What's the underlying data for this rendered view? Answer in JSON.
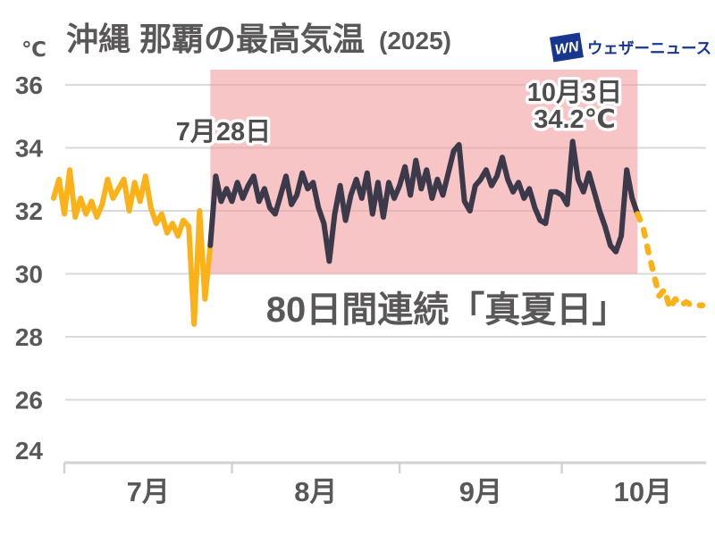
{
  "title": {
    "main": "沖縄 那覇の最高気温",
    "year": "(2025)"
  },
  "logo": {
    "mark": "WN",
    "name": "ウェザーニュース"
  },
  "axes": {
    "y_unit": "℃",
    "y_ticks": [
      36,
      34,
      32,
      30,
      28,
      26,
      24
    ],
    "x_ticks": [
      "7月",
      "8月",
      "9月",
      "10月"
    ]
  },
  "annotations": {
    "streak_start": "7月28日",
    "peak_date": "10月3日",
    "peak_temp": "34.2℃",
    "streak_text": "80日間連続「真夏日」"
  },
  "colors": {
    "text_gray": "#595757",
    "annotation_gray": "#4f4d4d",
    "line_yellow": "#FBB118",
    "line_dark": "#3B394A",
    "band_pink": "#F39B9C",
    "band_opacity": 0.58,
    "grid": "#D9D9D9",
    "axis": "#D2D2D2",
    "logo_blue": "#17368E"
  },
  "chart_data": {
    "type": "line",
    "title": "沖縄 那覇の最高気温 (2025)",
    "ylabel": "℃",
    "ylim": [
      24,
      36
    ],
    "grid": true,
    "legend": "none",
    "x_unit": "day index, 0 = 7月1日",
    "x_month_boundaries": {
      "labels": [
        "7月",
        "8月",
        "9月",
        "10月"
      ],
      "tick_days": [
        0,
        31,
        62,
        92
      ],
      "label_mid_days": [
        15.5,
        46.5,
        77,
        107
      ]
    },
    "highlight_band": {
      "start_day": 27,
      "end_day": 106,
      "start_label": "7月28日",
      "peak_label": {
        "date": "10月3日",
        "value": 34.2,
        "day": 94
      },
      "caption": "80日間連続「真夏日」",
      "temp_top": 36.5,
      "temp_bottom": 30
    },
    "series": [
      {
        "key": "before_streak",
        "style": "solid",
        "color": "#FBB118",
        "points": [
          [
            -2,
            32.4
          ],
          [
            -1,
            33.0
          ],
          [
            0,
            31.9
          ],
          [
            1,
            33.3
          ],
          [
            2,
            31.8
          ],
          [
            3,
            32.4
          ],
          [
            4,
            31.9
          ],
          [
            5,
            32.3
          ],
          [
            6,
            31.8
          ],
          [
            7,
            32.2
          ],
          [
            8,
            33.0
          ],
          [
            9,
            32.4
          ],
          [
            10,
            32.7
          ],
          [
            11,
            33.0
          ],
          [
            12,
            32.0
          ],
          [
            13,
            32.9
          ],
          [
            14,
            32.3
          ],
          [
            15,
            33.1
          ],
          [
            16,
            32.1
          ],
          [
            17,
            31.6
          ],
          [
            18,
            31.9
          ],
          [
            19,
            31.3
          ],
          [
            20,
            31.6
          ],
          [
            21,
            31.2
          ],
          [
            22,
            31.7
          ],
          [
            23,
            31.5
          ],
          [
            24,
            28.4
          ],
          [
            25,
            32.0
          ],
          [
            26,
            29.2
          ],
          [
            27,
            30.9
          ]
        ]
      },
      {
        "key": "streak",
        "style": "solid",
        "color": "#3B394A",
        "points": [
          [
            27,
            30.9
          ],
          [
            28,
            33.1
          ],
          [
            29,
            32.3
          ],
          [
            30,
            32.7
          ],
          [
            31,
            32.3
          ],
          [
            32,
            32.9
          ],
          [
            33,
            32.4
          ],
          [
            34,
            32.8
          ],
          [
            35,
            33.1
          ],
          [
            36,
            32.3
          ],
          [
            37,
            32.7
          ],
          [
            38,
            32.1
          ],
          [
            39,
            31.9
          ],
          [
            40,
            32.5
          ],
          [
            41,
            33.1
          ],
          [
            42,
            32.2
          ],
          [
            43,
            32.5
          ],
          [
            44,
            33.2
          ],
          [
            45,
            32.7
          ],
          [
            46,
            32.9
          ],
          [
            47,
            32.1
          ],
          [
            48,
            31.6
          ],
          [
            49,
            30.4
          ],
          [
            50,
            31.9
          ],
          [
            51,
            32.8
          ],
          [
            52,
            31.7
          ],
          [
            53,
            32.5
          ],
          [
            54,
            33.0
          ],
          [
            55,
            32.4
          ],
          [
            56,
            33.2
          ],
          [
            57,
            31.9
          ],
          [
            58,
            32.9
          ],
          [
            59,
            31.8
          ],
          [
            60,
            32.9
          ],
          [
            61,
            32.4
          ],
          [
            62,
            32.8
          ],
          [
            63,
            33.4
          ],
          [
            64,
            32.5
          ],
          [
            65,
            33.6
          ],
          [
            66,
            32.7
          ],
          [
            67,
            33.3
          ],
          [
            68,
            32.4
          ],
          [
            69,
            33.0
          ],
          [
            70,
            32.5
          ],
          [
            71,
            33.2
          ],
          [
            72,
            33.9
          ],
          [
            73,
            34.1
          ],
          [
            74,
            32.3
          ],
          [
            75,
            32.0
          ],
          [
            76,
            32.8
          ],
          [
            77,
            33.0
          ],
          [
            78,
            33.3
          ],
          [
            79,
            32.8
          ],
          [
            80,
            33.1
          ],
          [
            81,
            33.7
          ],
          [
            82,
            33.0
          ],
          [
            83,
            32.6
          ],
          [
            84,
            32.9
          ],
          [
            85,
            32.4
          ],
          [
            86,
            32.7
          ],
          [
            87,
            32.1
          ],
          [
            88,
            31.7
          ],
          [
            89,
            31.6
          ],
          [
            90,
            32.6
          ],
          [
            91,
            32.6
          ],
          [
            92,
            32.5
          ],
          [
            93,
            32.2
          ],
          [
            94,
            34.2
          ],
          [
            95,
            33.0
          ],
          [
            96,
            32.6
          ],
          [
            97,
            33.2
          ],
          [
            98,
            32.6
          ],
          [
            99,
            32.0
          ],
          [
            100,
            31.5
          ],
          [
            101,
            30.9
          ],
          [
            102,
            30.7
          ],
          [
            103,
            31.2
          ],
          [
            104,
            33.3
          ],
          [
            105,
            32.4
          ],
          [
            106,
            31.9
          ]
        ]
      },
      {
        "key": "forecast",
        "style": "dashed",
        "color": "#FBB118",
        "points": [
          [
            106,
            31.9
          ],
          [
            107,
            31.5
          ],
          [
            108,
            30.7
          ],
          [
            109,
            30.0
          ],
          [
            110,
            29.3
          ],
          [
            111,
            29.5
          ],
          [
            112,
            28.9
          ],
          [
            113,
            29.2
          ],
          [
            114,
            29.0
          ],
          [
            115,
            29.1
          ],
          [
            116,
            29.0
          ],
          [
            117,
            29.0
          ],
          [
            118,
            29.0
          ]
        ]
      }
    ]
  }
}
